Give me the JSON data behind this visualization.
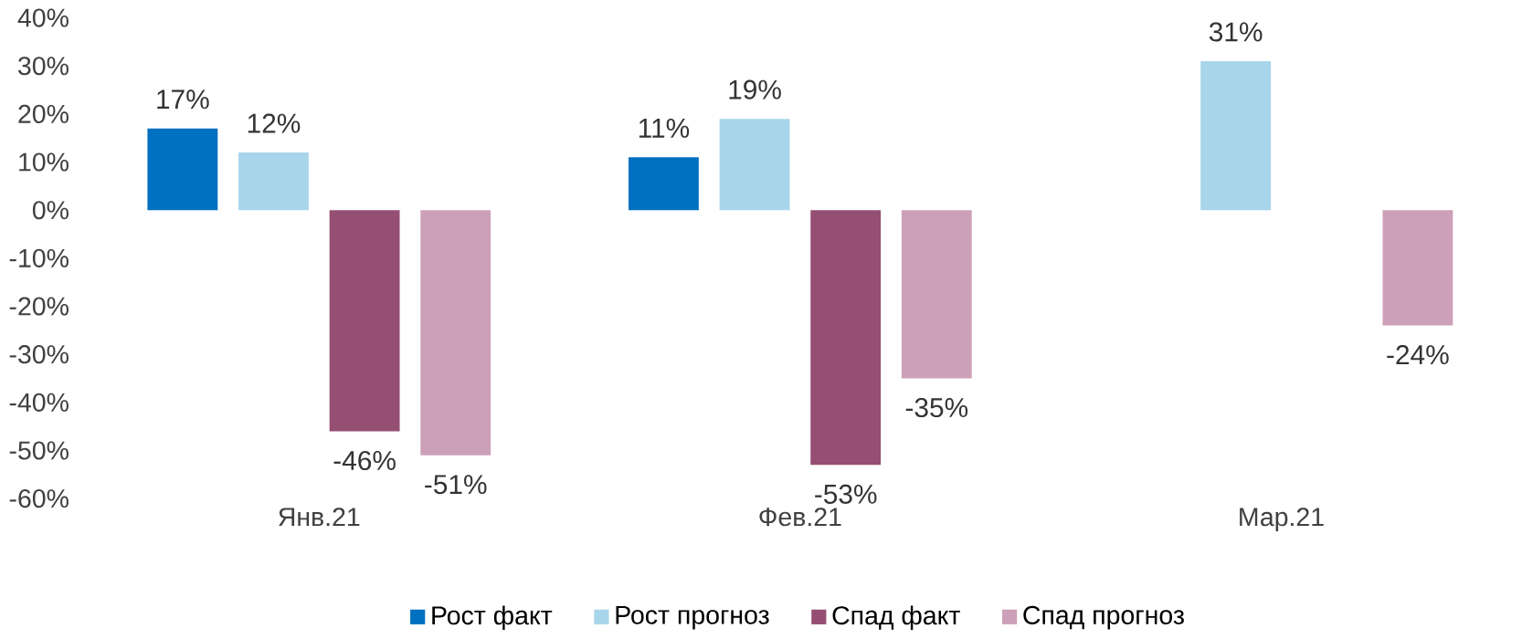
{
  "chart_data": {
    "type": "bar",
    "categories": [
      "Янв.21",
      "Фев.21",
      "Мар.21"
    ],
    "series": [
      {
        "name": "Рост факт",
        "color": "#0070c0",
        "values": [
          17,
          11,
          null
        ],
        "value_labels": [
          "17%",
          "11%",
          null
        ]
      },
      {
        "name": "Рост прогноз",
        "color": "#a9d5ea",
        "values": [
          12,
          19,
          31
        ],
        "value_labels": [
          "12%",
          "19%",
          "31%"
        ]
      },
      {
        "name": "Спад факт",
        "color": "#954f72",
        "values": [
          -46,
          -53,
          null
        ],
        "value_labels": [
          "-46%",
          "-53%",
          null
        ]
      },
      {
        "name": "Спад прогноз",
        "color": "#cda0b9",
        "values": [
          -51,
          -35,
          -24
        ],
        "value_labels": [
          "-51%",
          "-35%",
          "-24%"
        ]
      }
    ],
    "ylim": [
      -60,
      40
    ],
    "yticks": [
      {
        "value": -60,
        "label": "-60%"
      },
      {
        "value": -50,
        "label": "-50%"
      },
      {
        "value": -40,
        "label": "-40%"
      },
      {
        "value": -30,
        "label": "-30%"
      },
      {
        "value": -20,
        "label": "-20%"
      },
      {
        "value": -10,
        "label": "-10%"
      },
      {
        "value": 0,
        "label": "0%"
      },
      {
        "value": 10,
        "label": "10%"
      },
      {
        "value": 20,
        "label": "20%"
      },
      {
        "value": 30,
        "label": "30%"
      },
      {
        "value": 40,
        "label": "40%"
      }
    ],
    "grid": false,
    "legend": "bottom"
  }
}
